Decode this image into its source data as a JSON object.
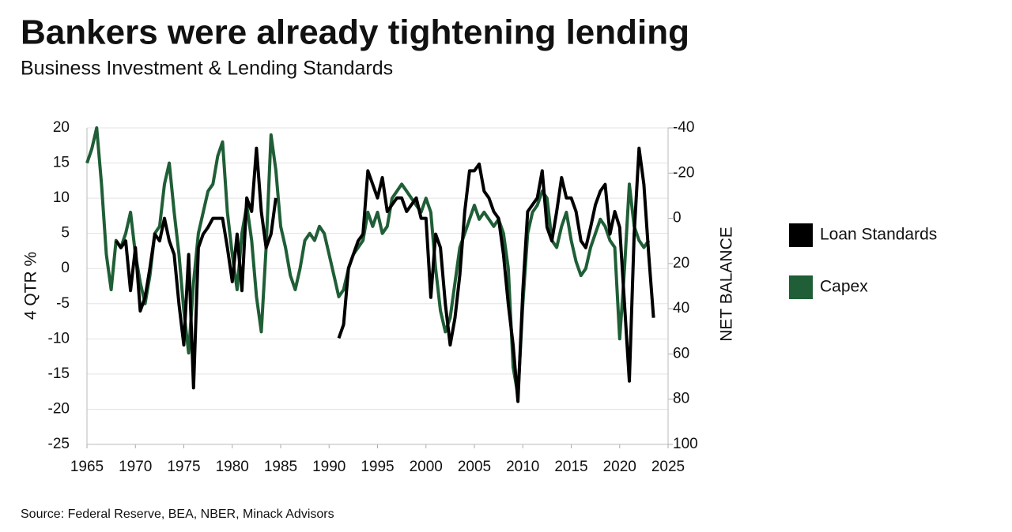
{
  "chart_data": {
    "type": "line",
    "title": "Bankers were already tightening lending",
    "subtitle": "Business Investment & Lending Standards",
    "y_label": "4 QTR %",
    "y2_label": "NET BALANCE",
    "source": "Source: Federal Reserve, BEA, NBER, Minack Advisors",
    "x": [
      1965,
      1965.5,
      1966,
      1966.5,
      1967,
      1967.5,
      1968,
      1968.5,
      1969,
      1969.5,
      1970,
      1970.5,
      1971,
      1971.5,
      1972,
      1972.5,
      1973,
      1973.5,
      1974,
      1974.5,
      1975,
      1975.5,
      1976,
      1976.5,
      1977,
      1977.5,
      1978,
      1978.5,
      1979,
      1979.5,
      1980,
      1980.5,
      1981,
      1981.5,
      1982,
      1982.5,
      1983,
      1983.5,
      1984,
      1984.5,
      1985,
      1985.5,
      1986,
      1986.5,
      1987,
      1987.5,
      1988,
      1988.5,
      1989,
      1989.5,
      1990,
      1990.5,
      1991,
      1991.5,
      1992,
      1992.5,
      1993,
      1993.5,
      1994,
      1994.5,
      1995,
      1995.5,
      1996,
      1996.5,
      1997,
      1997.5,
      1998,
      1998.5,
      1999,
      1999.5,
      2000,
      2000.5,
      2001,
      2001.5,
      2002,
      2002.5,
      2003,
      2003.5,
      2004,
      2004.5,
      2005,
      2005.5,
      2006,
      2006.5,
      2007,
      2007.5,
      2008,
      2008.5,
      2009,
      2009.5,
      2010,
      2010.5,
      2011,
      2011.5,
      2012,
      2012.5,
      2013,
      2013.5,
      2014,
      2014.5,
      2015,
      2015.5,
      2016,
      2016.5,
      2017,
      2017.5,
      2018,
      2018.5,
      2019,
      2019.5,
      2020,
      2020.5,
      2021,
      2021.5,
      2022,
      2022.5,
      2023,
      2023.5
    ],
    "series": [
      {
        "name": "Capex",
        "color": "#1f5e36",
        "axis": "y",
        "values": [
          15,
          17,
          20,
          12,
          2,
          -3,
          4,
          3,
          5,
          8,
          2,
          -2,
          -5,
          -1,
          5,
          6,
          12,
          15,
          8,
          2,
          -6,
          -12,
          -2,
          5,
          8,
          11,
          12,
          16,
          18,
          8,
          2,
          -3,
          5,
          9,
          4,
          -4,
          -9,
          3,
          19,
          14,
          6,
          3,
          -1,
          -3,
          0,
          4,
          5,
          4,
          6,
          5,
          2,
          -1,
          -4,
          -3,
          0,
          2,
          3,
          4,
          8,
          6,
          8,
          5,
          6,
          10,
          11,
          12,
          11,
          10,
          9,
          8,
          10,
          8,
          0,
          -6,
          -9,
          -7,
          -2,
          3,
          5,
          7,
          9,
          7,
          8,
          7,
          6,
          7,
          5,
          0,
          -14,
          -18,
          -5,
          5,
          8,
          9,
          11,
          10,
          4,
          3,
          6,
          8,
          4,
          1,
          -1,
          0,
          3,
          5,
          7,
          6,
          4,
          3,
          -10,
          0,
          12,
          6,
          4,
          3,
          4,
          null
        ]
      },
      {
        "name": "Loan Standards",
        "color": "#000000",
        "axis": "y2",
        "values": [
          null,
          null,
          null,
          null,
          null,
          null,
          10,
          13,
          10,
          32,
          13,
          41,
          35,
          22,
          7,
          10,
          0,
          10,
          16,
          38,
          56,
          16,
          75,
          13,
          7,
          4,
          0,
          0,
          0,
          13,
          28,
          7,
          32,
          -9,
          -3,
          -31,
          -3,
          13,
          7,
          -9,
          null,
          null,
          null,
          null,
          null,
          null,
          null,
          null,
          null,
          null,
          null,
          null,
          53,
          47,
          22,
          16,
          10,
          7,
          -21,
          -15,
          -9,
          -18,
          -3,
          -6,
          -9,
          -9,
          -3,
          -6,
          -9,
          0,
          0,
          35,
          7,
          13,
          38,
          56,
          44,
          25,
          -3,
          -21,
          -21,
          -24,
          -12,
          -9,
          -3,
          0,
          16,
          38,
          56,
          81,
          32,
          -3,
          -6,
          -9,
          -21,
          4,
          10,
          -3,
          -18,
          -9,
          -9,
          -3,
          10,
          13,
          4,
          -6,
          -12,
          -15,
          7,
          -3,
          4,
          38,
          72,
          7,
          -31,
          -15,
          16,
          44
        ]
      }
    ],
    "legend_order": [
      1,
      0
    ],
    "legend": "right",
    "xlim": [
      1965,
      2025
    ],
    "xticks": [
      1965,
      1970,
      1975,
      1980,
      1985,
      1990,
      1995,
      2000,
      2005,
      2010,
      2015,
      2020,
      2025
    ],
    "ylim": [
      -25,
      20
    ],
    "yticks": [
      -25,
      -20,
      -15,
      -10,
      -5,
      0,
      5,
      10,
      15,
      20
    ],
    "y2lim": [
      -40,
      100
    ],
    "y2ticks": [
      -40,
      -20,
      0,
      20,
      40,
      60,
      80,
      100
    ],
    "y2_inverted": true,
    "grid": true
  }
}
